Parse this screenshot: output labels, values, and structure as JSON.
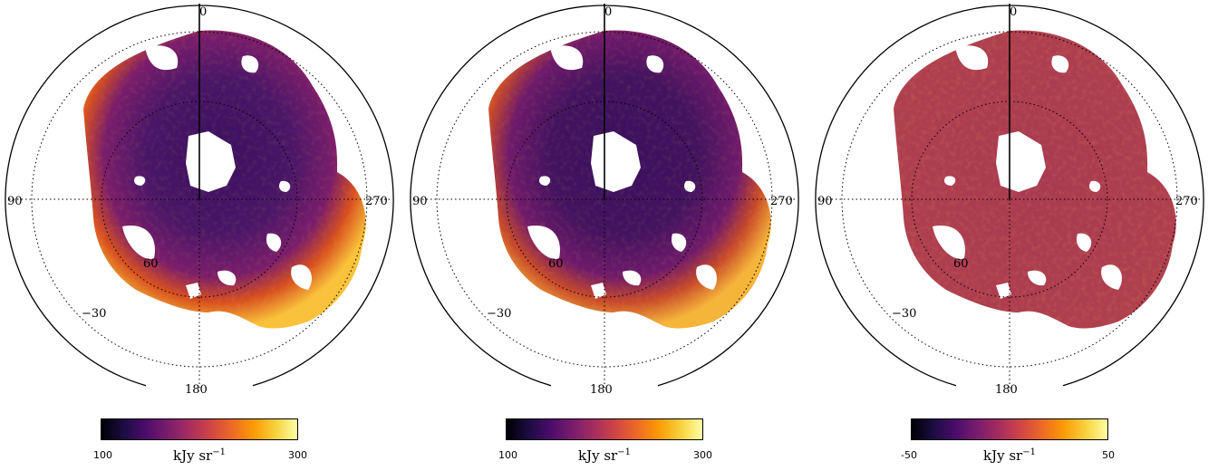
{
  "panels": [
    {
      "name": "panel-1",
      "colorbar": {
        "min": "100",
        "max": "300",
        "unit": "kJy sr",
        "unit_exp": "−1"
      },
      "labels": {
        "top": "0",
        "left": "90",
        "right": "270",
        "bottom": "180",
        "lat60": "60",
        "latm30": "−30"
      }
    },
    {
      "name": "panel-2",
      "colorbar": {
        "min": "100",
        "max": "300",
        "unit": "kJy sr",
        "unit_exp": "−1"
      },
      "labels": {
        "top": "0",
        "left": "90",
        "right": "270",
        "bottom": "180",
        "lat60": "60",
        "latm30": "−30"
      }
    },
    {
      "name": "panel-3",
      "colorbar": {
        "min": "-50",
        "max": "50",
        "unit": "kJy sr",
        "unit_exp": "−1"
      },
      "labels": {
        "top": "0",
        "left": "90",
        "right": "270",
        "bottom": "180",
        "lat60": "60",
        "latm30": "−30"
      }
    }
  ],
  "colormap": "inferno",
  "colors": {
    "inferno": [
      "#000004",
      "#1b0c41",
      "#4a0c6b",
      "#781c6d",
      "#a52c60",
      "#cf4446",
      "#ed6925",
      "#fb9b06",
      "#f7d13d",
      "#fcffa4"
    ],
    "panel1_inner": "#4a1668",
    "panel1_outer": "#f08a1c",
    "panel2_inner": "#3f1463",
    "panel2_outer": "#e8801f",
    "panel3_fill": "#a83a52"
  }
}
